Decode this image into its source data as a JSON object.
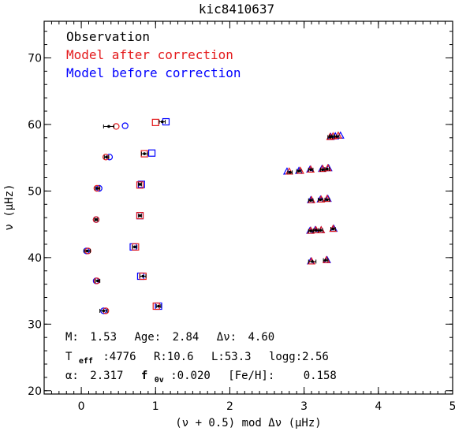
{
  "chart_data": {
    "type": "scatter",
    "title": "kic8410637",
    "xlabel": "(ν + 0.5) mod Δν (μHz)",
    "ylabel": "ν (μHz)",
    "xlim": [
      -0.5,
      5
    ],
    "ylim": [
      19.5,
      75.5
    ],
    "xticks": [
      0,
      1,
      2,
      3,
      4,
      5
    ],
    "yticks": [
      20,
      30,
      40,
      50,
      60,
      70
    ],
    "legend": {
      "placement": "top-left",
      "entries": [
        {
          "label": "Observation",
          "color": "#000000"
        },
        {
          "label": "Model after correction",
          "color": "#e41a1c"
        },
        {
          "label": "Model before correction",
          "color": "#0000ff"
        }
      ]
    },
    "series": [
      {
        "name": "Observation",
        "color": "#000000",
        "marker": "filled-circle-with-xerr",
        "points": [
          {
            "x": 0.37,
            "y": 59.7,
            "xerr": 0.07
          },
          {
            "x": 0.34,
            "y": 55.1,
            "xerr": 0.03
          },
          {
            "x": 0.22,
            "y": 50.4,
            "xerr": 0.03
          },
          {
            "x": 0.2,
            "y": 45.7,
            "xerr": 0.02
          },
          {
            "x": 0.08,
            "y": 41.0,
            "xerr": 0.04
          },
          {
            "x": 0.22,
            "y": 36.5,
            "xerr": 0.03
          },
          {
            "x": 0.3,
            "y": 32.0,
            "xerr": 0.05
          },
          {
            "x": 1.09,
            "y": 60.4,
            "xerr": 0.04
          },
          {
            "x": 0.85,
            "y": 55.6,
            "xerr": 0.04
          },
          {
            "x": 0.79,
            "y": 51.0,
            "xerr": 0.02
          },
          {
            "x": 0.79,
            "y": 46.3,
            "xerr": 0.02
          },
          {
            "x": 0.72,
            "y": 41.6,
            "xerr": 0.03
          },
          {
            "x": 0.83,
            "y": 37.2,
            "xerr": 0.04
          },
          {
            "x": 1.04,
            "y": 32.7,
            "xerr": 0.03
          },
          {
            "x": 3.35,
            "y": 58.1,
            "xerr": 0.03
          },
          {
            "x": 3.37,
            "y": 58.2,
            "xerr": 0.03
          },
          {
            "x": 3.44,
            "y": 58.2,
            "xerr": 0.03
          },
          {
            "x": 2.81,
            "y": 52.8,
            "xerr": 0.03
          },
          {
            "x": 2.93,
            "y": 53.0,
            "xerr": 0.03
          },
          {
            "x": 3.09,
            "y": 53.2,
            "xerr": 0.03
          },
          {
            "x": 3.25,
            "y": 53.2,
            "xerr": 0.03
          },
          {
            "x": 3.31,
            "y": 53.3,
            "xerr": 0.03
          },
          {
            "x": 3.09,
            "y": 48.6,
            "xerr": 0.03
          },
          {
            "x": 3.22,
            "y": 48.7,
            "xerr": 0.03
          },
          {
            "x": 3.31,
            "y": 48.7,
            "xerr": 0.03
          },
          {
            "x": 3.09,
            "y": 44.0,
            "xerr": 0.03
          },
          {
            "x": 3.16,
            "y": 44.1,
            "xerr": 0.03
          },
          {
            "x": 3.22,
            "y": 44.1,
            "xerr": 0.03
          },
          {
            "x": 3.39,
            "y": 44.3,
            "xerr": 0.03
          },
          {
            "x": 3.11,
            "y": 39.4,
            "xerr": 0.05
          },
          {
            "x": 3.29,
            "y": 39.6,
            "xerr": 0.03
          }
        ]
      },
      {
        "name": "Model after correction",
        "color": "#e41a1c",
        "markers": [
          {
            "shape": "circle",
            "x": 0.47,
            "y": 59.7
          },
          {
            "shape": "circle",
            "x": 0.33,
            "y": 55.1
          },
          {
            "shape": "circle",
            "x": 0.21,
            "y": 50.4
          },
          {
            "shape": "circle",
            "x": 0.2,
            "y": 45.7
          },
          {
            "shape": "circle",
            "x": 0.09,
            "y": 41.0
          },
          {
            "shape": "circle",
            "x": 0.21,
            "y": 36.5
          },
          {
            "shape": "circle",
            "x": 0.33,
            "y": 32.0
          },
          {
            "shape": "square",
            "x": 1.0,
            "y": 60.3
          },
          {
            "shape": "square",
            "x": 0.85,
            "y": 55.6
          },
          {
            "shape": "square",
            "x": 0.79,
            "y": 50.9
          },
          {
            "shape": "square",
            "x": 0.79,
            "y": 46.3
          },
          {
            "shape": "square",
            "x": 0.73,
            "y": 41.6
          },
          {
            "shape": "square",
            "x": 0.83,
            "y": 37.2
          },
          {
            "shape": "square",
            "x": 1.01,
            "y": 32.7
          },
          {
            "shape": "triangle",
            "x": 3.35,
            "y": 58.1
          },
          {
            "shape": "triangle",
            "x": 3.39,
            "y": 58.2
          },
          {
            "shape": "triangle",
            "x": 3.46,
            "y": 58.3
          },
          {
            "shape": "triangle",
            "x": 2.8,
            "y": 52.9
          },
          {
            "shape": "triangle",
            "x": 2.95,
            "y": 53.0
          },
          {
            "shape": "triangle",
            "x": 3.09,
            "y": 53.2
          },
          {
            "shape": "triangle",
            "x": 3.25,
            "y": 53.3
          },
          {
            "shape": "triangle",
            "x": 3.32,
            "y": 53.4
          },
          {
            "shape": "triangle",
            "x": 3.1,
            "y": 48.6
          },
          {
            "shape": "triangle",
            "x": 3.23,
            "y": 48.7
          },
          {
            "shape": "triangle",
            "x": 3.31,
            "y": 48.8
          },
          {
            "shape": "triangle",
            "x": 3.09,
            "y": 44.0
          },
          {
            "shape": "triangle",
            "x": 3.16,
            "y": 44.1
          },
          {
            "shape": "triangle",
            "x": 3.23,
            "y": 44.1
          },
          {
            "shape": "triangle",
            "x": 3.39,
            "y": 44.3
          },
          {
            "shape": "triangle",
            "x": 3.1,
            "y": 39.4
          },
          {
            "shape": "triangle",
            "x": 3.3,
            "y": 39.6
          }
        ]
      },
      {
        "name": "Model before correction",
        "color": "#0000ff",
        "markers": [
          {
            "shape": "circle",
            "x": 0.59,
            "y": 59.8
          },
          {
            "shape": "circle",
            "x": 0.38,
            "y": 55.1
          },
          {
            "shape": "circle",
            "x": 0.24,
            "y": 50.4
          },
          {
            "shape": "circle",
            "x": 0.2,
            "y": 45.7
          },
          {
            "shape": "circle",
            "x": 0.07,
            "y": 41.0
          },
          {
            "shape": "circle",
            "x": 0.2,
            "y": 36.5
          },
          {
            "shape": "circle",
            "x": 0.3,
            "y": 32.0
          },
          {
            "shape": "square",
            "x": 1.14,
            "y": 60.4
          },
          {
            "shape": "square",
            "x": 0.95,
            "y": 55.7
          },
          {
            "shape": "square",
            "x": 0.81,
            "y": 51.0
          },
          {
            "shape": "square",
            "x": 0.79,
            "y": 46.3
          },
          {
            "shape": "square",
            "x": 0.7,
            "y": 41.6
          },
          {
            "shape": "square",
            "x": 0.8,
            "y": 37.2
          },
          {
            "shape": "square",
            "x": 1.04,
            "y": 32.7
          },
          {
            "shape": "triangle",
            "x": 3.36,
            "y": 58.1
          },
          {
            "shape": "triangle",
            "x": 3.42,
            "y": 58.2
          },
          {
            "shape": "triangle",
            "x": 3.49,
            "y": 58.3
          },
          {
            "shape": "triangle",
            "x": 2.77,
            "y": 52.9
          },
          {
            "shape": "triangle",
            "x": 2.93,
            "y": 53.0
          },
          {
            "shape": "triangle",
            "x": 3.08,
            "y": 53.2
          },
          {
            "shape": "triangle",
            "x": 3.24,
            "y": 53.3
          },
          {
            "shape": "triangle",
            "x": 3.33,
            "y": 53.4
          },
          {
            "shape": "triangle",
            "x": 3.09,
            "y": 48.6
          },
          {
            "shape": "triangle",
            "x": 3.22,
            "y": 48.7
          },
          {
            "shape": "triangle",
            "x": 3.32,
            "y": 48.8
          },
          {
            "shape": "triangle",
            "x": 3.08,
            "y": 44.0
          },
          {
            "shape": "triangle",
            "x": 3.15,
            "y": 44.1
          },
          {
            "shape": "triangle",
            "x": 3.23,
            "y": 44.1
          },
          {
            "shape": "triangle",
            "x": 3.4,
            "y": 44.3
          },
          {
            "shape": "triangle",
            "x": 3.09,
            "y": 39.4
          },
          {
            "shape": "triangle",
            "x": 3.31,
            "y": 39.6
          }
        ]
      }
    ],
    "annotations": {
      "line1": {
        "m_label": "M:",
        "m_value": "1.53",
        "age_label": "Age:",
        "age_value": "2.84",
        "dnu_label": "Δν:",
        "dnu_value": "4.60"
      },
      "line2": {
        "teff_label": "T",
        "teff_sub": "eff",
        "teff_value": ":4776",
        "r": "R:10.6",
        "l": "L:53.3",
        "logg": "logg:2.56"
      },
      "line3": {
        "alpha_label": "α:",
        "alpha_value": "2.317",
        "f_label": "f",
        "f_sub": "0v",
        "f_value": ":0.020",
        "feh_label": "[Fe/H]:",
        "feh_value": "0.158"
      }
    }
  }
}
